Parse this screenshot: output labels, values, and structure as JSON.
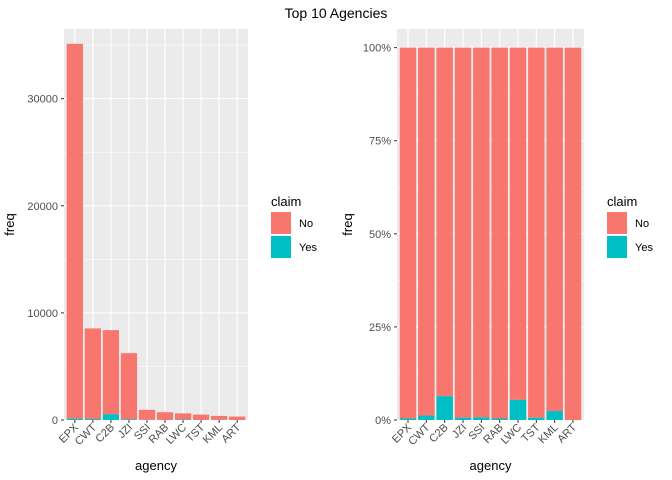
{
  "title": "Top 10 Agencies",
  "colors": {
    "No": "#F8766D",
    "Yes": "#00BFC4",
    "panel": "#EBEBEB",
    "grid": "#FFFFFF"
  },
  "chart_data": [
    {
      "type": "bar",
      "stacked": true,
      "position": "stack",
      "categories": [
        "EPX",
        "CWT",
        "C2B",
        "JZI",
        "SSI",
        "RAB",
        "LWC",
        "TST",
        "KML",
        "ART"
      ],
      "series": [
        {
          "name": "No",
          "values": [
            35000,
            8450,
            7850,
            6180,
            940,
            720,
            580,
            500,
            370,
            320
          ]
        },
        {
          "name": "Yes",
          "values": [
            120,
            100,
            540,
            60,
            10,
            5,
            40,
            5,
            10,
            0
          ]
        }
      ],
      "xlabel": "agency",
      "ylabel": "freq",
      "ylim": [
        0,
        36500
      ],
      "yticks": [
        0,
        10000,
        20000,
        30000
      ],
      "ytick_labels": [
        "0",
        "10000",
        "20000",
        "30000"
      ],
      "legend": {
        "title": "claim",
        "entries": [
          "No",
          "Yes"
        ],
        "placement": "right"
      },
      "grid": true
    },
    {
      "type": "bar",
      "stacked": true,
      "position": "fill",
      "categories": [
        "EPX",
        "CWT",
        "C2B",
        "JZI",
        "SSI",
        "RAB",
        "LWC",
        "TST",
        "KML",
        "ART"
      ],
      "series": [
        {
          "name": "No",
          "values": [
            0.996,
            0.988,
            0.936,
            0.994,
            0.993,
            0.996,
            0.946,
            0.994,
            0.976,
            1.0
          ]
        },
        {
          "name": "Yes",
          "values": [
            0.004,
            0.012,
            0.064,
            0.006,
            0.007,
            0.004,
            0.054,
            0.006,
            0.024,
            0.0
          ]
        }
      ],
      "xlabel": "agency",
      "ylabel": "freq",
      "ylim": [
        0,
        1.05
      ],
      "yticks": [
        0,
        0.25,
        0.5,
        0.75,
        1.0
      ],
      "ytick_labels": [
        "0%",
        "25%",
        "50%",
        "75%",
        "100%"
      ],
      "legend": {
        "title": "claim",
        "entries": [
          "No",
          "Yes"
        ],
        "placement": "right"
      },
      "grid": true
    }
  ]
}
